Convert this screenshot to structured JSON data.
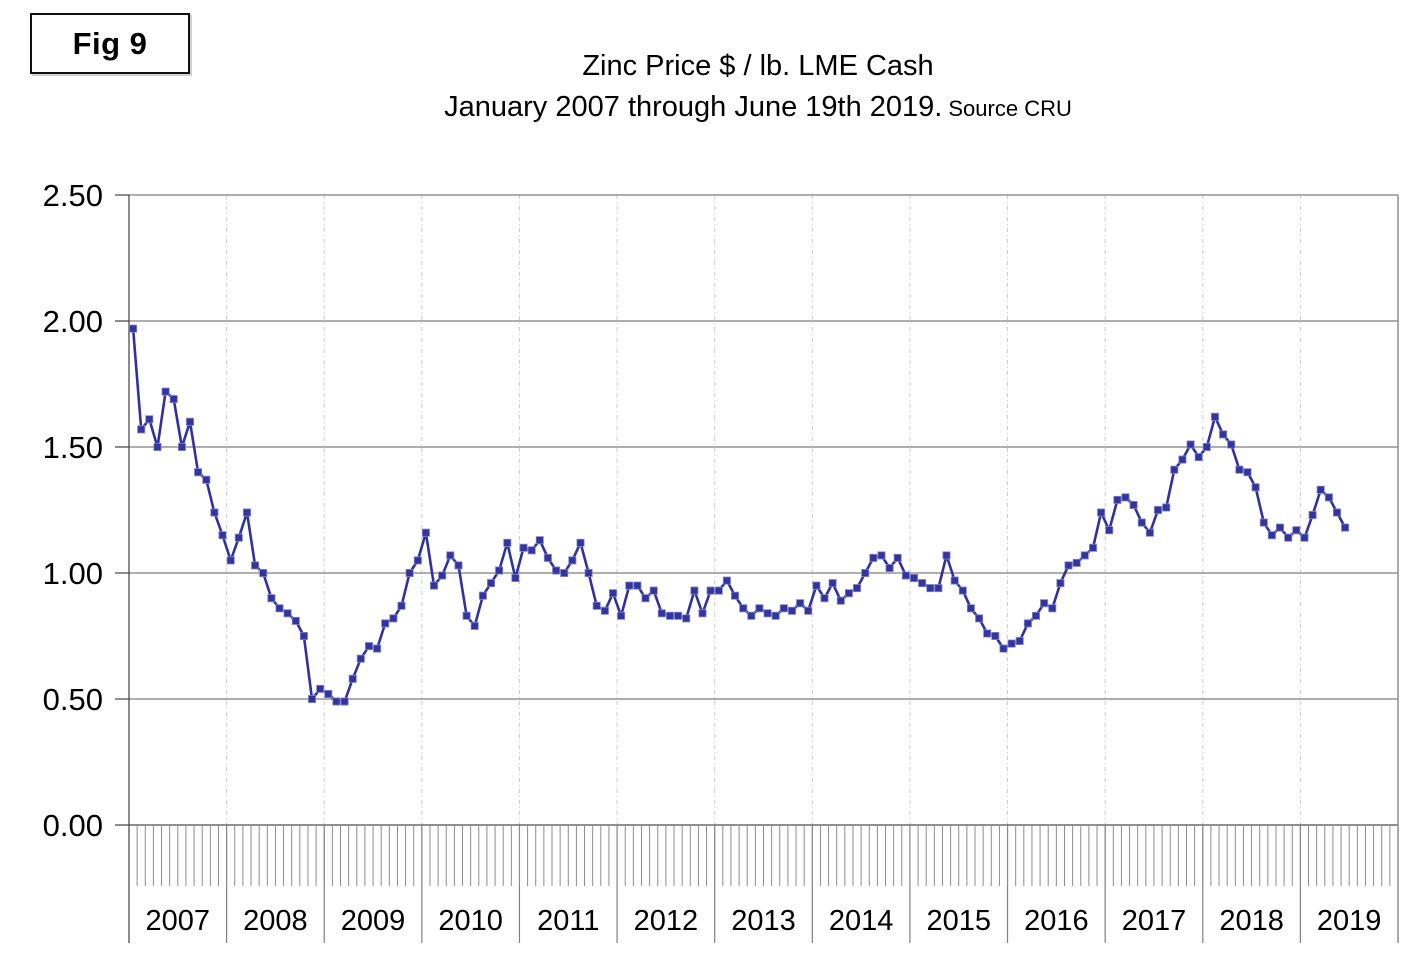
{
  "figure_label": "Fig 9",
  "title": "Zinc Price $ / lb. LME Cash",
  "subtitle": "January 2007 through June 19th 2019.",
  "subtitle_source": "Source CRU",
  "colors": {
    "line": "#2F329E",
    "marker_fill": "#3234A0",
    "marker_edge": "#8486C9",
    "h_gridline": "#7F7F7F",
    "baseline": "#4D4D4D",
    "year_gridline_dashed": "#C9C9C9",
    "month_tick": "#8C8C8C",
    "border": "#808080",
    "text": "#000000"
  },
  "chart_data": {
    "type": "line",
    "title": "Zinc Price $ / lb. LME Cash",
    "subtitle": "January 2007 through June 19th 2019. Source CRU",
    "frequency": "monthly",
    "start_month": "Jan 2007",
    "end_month": "Jun 2019",
    "x_tick_labels": [
      "2007",
      "2008",
      "2009",
      "2010",
      "2011",
      "2012",
      "2013",
      "2014",
      "2015",
      "2016",
      "2017",
      "2018",
      "2019"
    ],
    "ylim": [
      0.0,
      2.5
    ],
    "y_ticks": [
      0.0,
      0.5,
      1.0,
      1.5,
      2.0,
      2.5
    ],
    "y_tick_labels": [
      "0.00",
      "0.50",
      "1.00",
      "1.50",
      "2.00",
      "2.50"
    ],
    "grid": "horizontal solid gray lines every 0.50; vertical dashed light lines at year boundaries; month tick comb below baseline",
    "legend": "none",
    "marker": "square",
    "series": [
      {
        "name": "Zinc price $/lb LME cash",
        "values": [
          1.97,
          1.57,
          1.61,
          1.5,
          1.72,
          1.69,
          1.5,
          1.6,
          1.4,
          1.37,
          1.24,
          1.15,
          1.05,
          1.14,
          1.24,
          1.03,
          1.0,
          0.9,
          0.86,
          0.84,
          0.81,
          0.75,
          0.5,
          0.54,
          0.52,
          0.49,
          0.49,
          0.58,
          0.66,
          0.71,
          0.7,
          0.8,
          0.82,
          0.87,
          1.0,
          1.05,
          1.16,
          0.95,
          0.99,
          1.07,
          1.03,
          0.83,
          0.79,
          0.91,
          0.96,
          1.01,
          1.12,
          0.98,
          1.1,
          1.09,
          1.13,
          1.06,
          1.01,
          1.0,
          1.05,
          1.12,
          1.0,
          0.87,
          0.85,
          0.92,
          0.83,
          0.95,
          0.95,
          0.9,
          0.93,
          0.84,
          0.83,
          0.83,
          0.82,
          0.93,
          0.84,
          0.93,
          0.93,
          0.97,
          0.91,
          0.86,
          0.83,
          0.86,
          0.84,
          0.83,
          0.86,
          0.85,
          0.88,
          0.85,
          0.95,
          0.9,
          0.96,
          0.89,
          0.92,
          0.94,
          1.0,
          1.06,
          1.07,
          1.02,
          1.06,
          0.99,
          0.98,
          0.96,
          0.94,
          0.94,
          1.07,
          0.97,
          0.93,
          0.86,
          0.82,
          0.76,
          0.75,
          0.7,
          0.72,
          0.73,
          0.8,
          0.83,
          0.88,
          0.86,
          0.96,
          1.03,
          1.04,
          1.07,
          1.1,
          1.24,
          1.17,
          1.29,
          1.3,
          1.27,
          1.2,
          1.16,
          1.25,
          1.26,
          1.41,
          1.45,
          1.51,
          1.46,
          1.5,
          1.62,
          1.55,
          1.51,
          1.41,
          1.4,
          1.34,
          1.2,
          1.15,
          1.18,
          1.14,
          1.17,
          1.14,
          1.23,
          1.33,
          1.3,
          1.24,
          1.18
        ]
      }
    ]
  }
}
